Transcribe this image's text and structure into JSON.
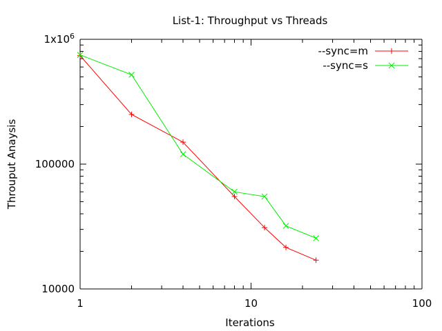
{
  "chart_data": {
    "type": "line",
    "title": "List-1: Throughput vs Threads",
    "xlabel": "Iterations",
    "ylabel": "Throuput Anaysis",
    "xscale": "log",
    "yscale": "log",
    "xlim": [
      1,
      100
    ],
    "ylim": [
      10000,
      1000000
    ],
    "grid": false,
    "legend_position": "top-right",
    "x_ticks": [
      {
        "value": 1,
        "label": "1"
      },
      {
        "value": 10,
        "label": "10"
      },
      {
        "value": 100,
        "label": "100"
      }
    ],
    "y_ticks": [
      {
        "value": 10000,
        "label": "10000"
      },
      {
        "value": 100000,
        "label": "100000"
      },
      {
        "value": 1000000,
        "label": "1x10",
        "sup": "6"
      }
    ],
    "series": [
      {
        "name": "--sync=m",
        "color": "#ff0000",
        "marker": "plus",
        "x": [
          1,
          2,
          4,
          8,
          12,
          16,
          24
        ],
        "y": [
          740000,
          250000,
          150000,
          55000,
          31000,
          21500,
          17000
        ]
      },
      {
        "name": "--sync=s",
        "color": "#00ee00",
        "marker": "cross",
        "x": [
          1,
          2,
          4,
          8,
          12,
          16,
          24
        ],
        "y": [
          750000,
          520000,
          120000,
          60000,
          55000,
          32000,
          25500
        ]
      }
    ]
  }
}
